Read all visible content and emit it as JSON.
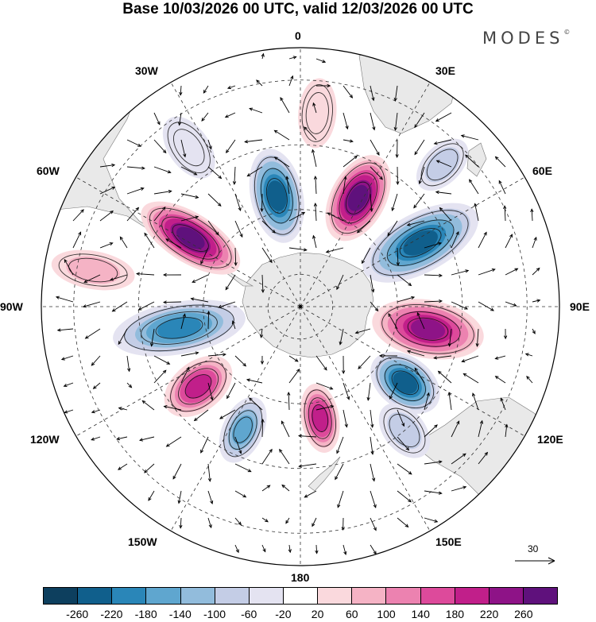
{
  "title": "Base 10/03/2026 00 UTC, valid 12/03/2026 00 UTC",
  "brand": "MODES",
  "brand_mark": "©",
  "longitude_labels": {
    "top": "0",
    "e30": "30E",
    "e60": "60E",
    "e90": "90E",
    "e120": "120E",
    "e150": "150E",
    "bottom": "180",
    "w150": "150W",
    "w120": "120W",
    "w90": "90W",
    "w60": "60W",
    "w30": "30W"
  },
  "reference_vector": "30",
  "colorbar": {
    "colors": [
      "#0d3f5e",
      "#105f8c",
      "#2a86b8",
      "#5fa6cf",
      "#92bcdc",
      "#c4cde6",
      "#e4e3f1",
      "#ffffff",
      "#fad9dd",
      "#f5b3c5",
      "#ec82b0",
      "#dd4a9b",
      "#c11f8a",
      "#8e1387",
      "#5f117c"
    ],
    "ticks": [
      "-260",
      "-220",
      "-180",
      "-140",
      "-100",
      "-60",
      "-20",
      "20",
      "60",
      "100",
      "140",
      "180",
      "220",
      "260"
    ]
  },
  "colors": {
    "land": "#e9e9e9",
    "grid": "#333333"
  },
  "anomalies": [
    {
      "label": "neg-atlantic",
      "value": -240,
      "lon": -12,
      "lat": -55,
      "a": 30,
      "b": 58
    },
    {
      "label": "pos-southafrica",
      "value": 260,
      "lon": 28,
      "lat": -52,
      "a": 32,
      "b": 56
    },
    {
      "label": "neg-indian",
      "value": -250,
      "lon": 62,
      "lat": -48,
      "a": 35,
      "b": 80
    },
    {
      "label": "pos-indian-east",
      "value": 230,
      "lon": 100,
      "lat": -50,
      "a": 34,
      "b": 70
    },
    {
      "label": "neg-australia-s",
      "value": -220,
      "lon": 126,
      "lat": -50,
      "a": 30,
      "b": 45
    },
    {
      "label": "neg-australia-e",
      "value": -90,
      "lon": 140,
      "lat": -40,
      "a": 22,
      "b": 35
    },
    {
      "label": "pos-nz",
      "value": 200,
      "lon": 170,
      "lat": -55,
      "a": 20,
      "b": 40
    },
    {
      "label": "neg-pacific-w",
      "value": -170,
      "lon": -155,
      "lat": -48,
      "a": 22,
      "b": 40
    },
    {
      "label": "pos-pacific",
      "value": 180,
      "lon": -128,
      "lat": -50,
      "a": 28,
      "b": 45
    },
    {
      "label": "neg-pacific-e",
      "value": -200,
      "lon": -100,
      "lat": -52,
      "a": 30,
      "b": 85
    },
    {
      "label": "pos-southamerica",
      "value": 265,
      "lon": -58,
      "lat": -50,
      "a": 28,
      "b": 70
    },
    {
      "label": "pos-weak-north",
      "value": 50,
      "lon": 5,
      "lat": -30,
      "a": 20,
      "b": 40
    },
    {
      "label": "neg-weak-ne",
      "value": -60,
      "lon": 45,
      "lat": -28,
      "a": 20,
      "b": 35
    },
    {
      "label": "pos-weak-w",
      "value": 60,
      "lon": -80,
      "lat": -25,
      "a": 20,
      "b": 50
    },
    {
      "label": "neg-weak-w",
      "value": -40,
      "lon": -35,
      "lat": -30,
      "a": 22,
      "b": 40
    }
  ]
}
